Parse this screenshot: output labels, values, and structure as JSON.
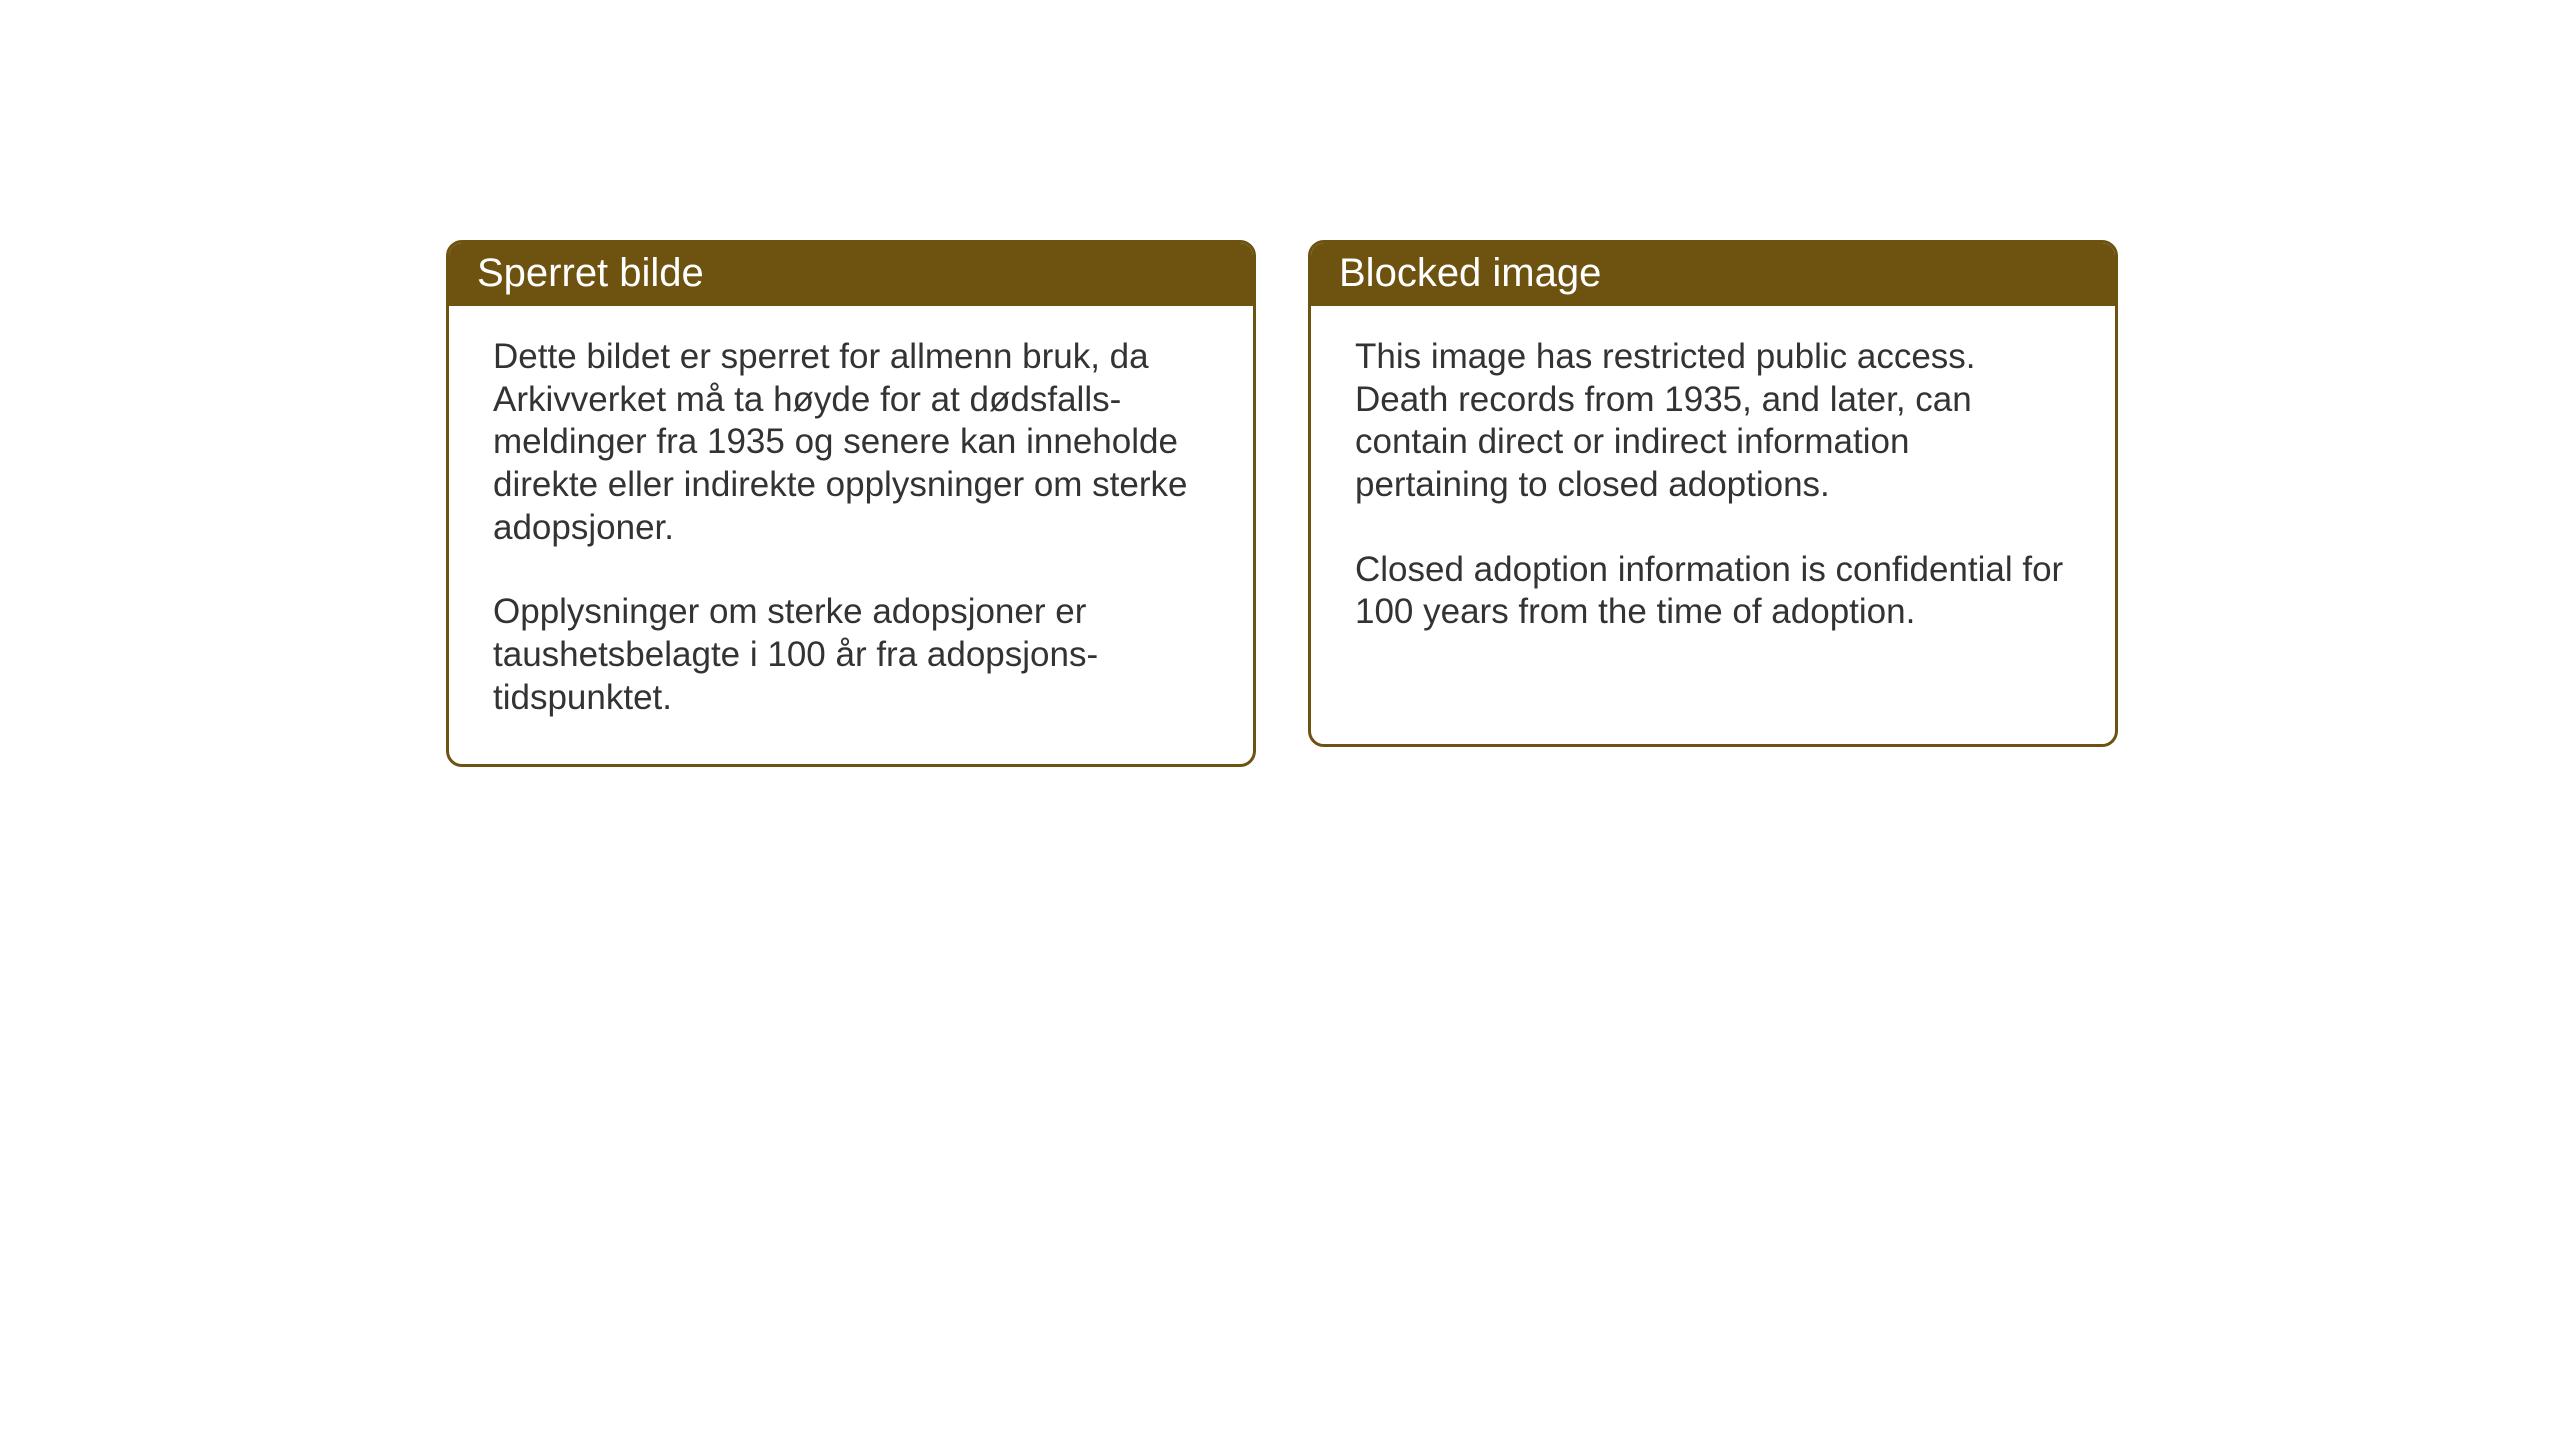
{
  "styling": {
    "header_bg_color": "#6e5310",
    "header_text_color": "#ffffff",
    "border_color": "#6e5310",
    "body_text_color": "#333333",
    "background_color": "#ffffff",
    "header_fontsize": 40,
    "body_fontsize": 35,
    "border_radius": 16,
    "border_width": 3
  },
  "notices": {
    "left": {
      "title": "Sperret bilde",
      "paragraph1": "Dette bildet er sperret for allmenn bruk, da Arkivverket må ta høyde for at dødsfalls-meldinger fra 1935 og senere kan inneholde direkte eller indirekte opplysninger om sterke adopsjoner.",
      "paragraph2": "Opplysninger om sterke adopsjoner er taushetsbelagte i 100 år fra adopsjons-tidspunktet."
    },
    "right": {
      "title": "Blocked image",
      "paragraph1": "This image has restricted public access. Death records from 1935, and later, can contain direct or indirect information pertaining to closed adoptions.",
      "paragraph2": "Closed adoption information is confidential for 100 years from the time of adoption."
    }
  }
}
